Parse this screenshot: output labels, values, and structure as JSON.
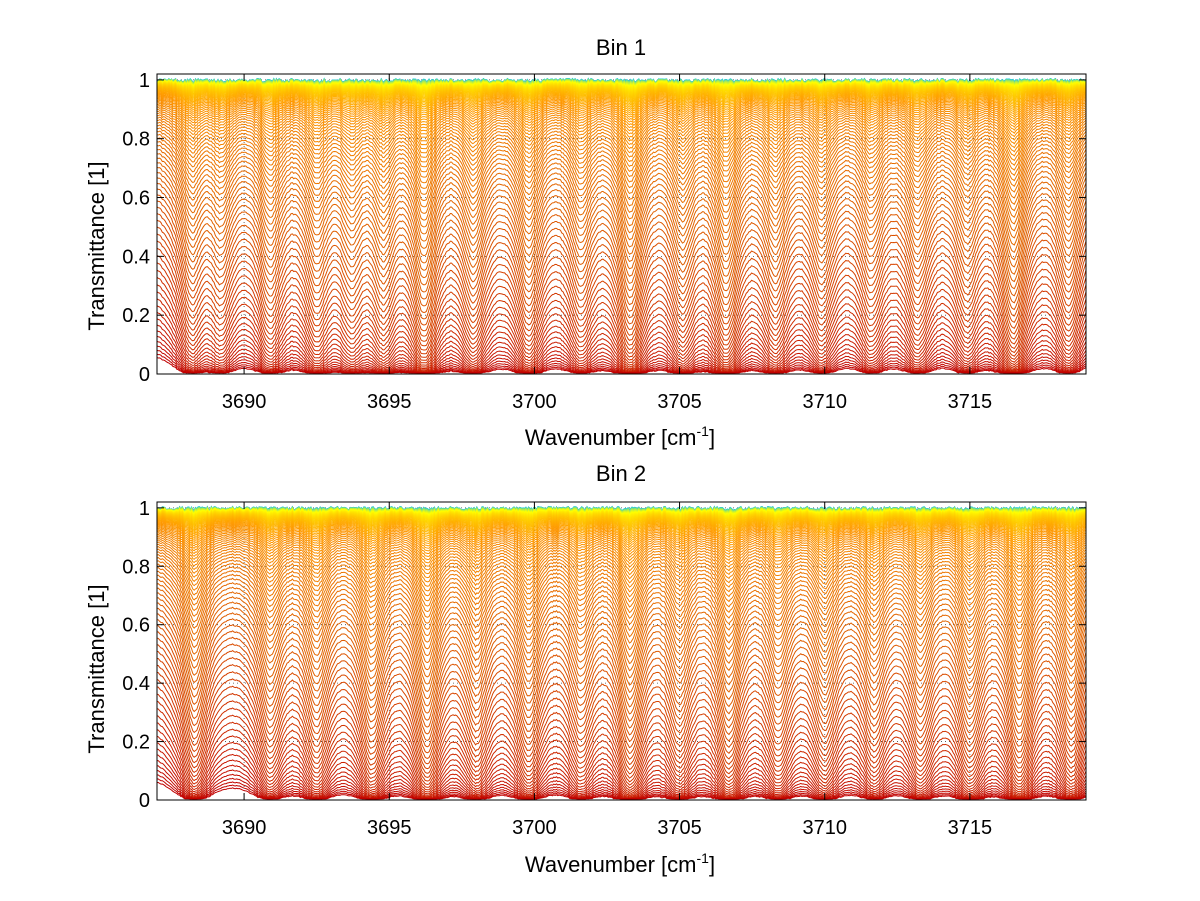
{
  "figure": {
    "background": "#ffffff"
  },
  "chart_data": [
    {
      "type": "line",
      "title": "Bin 1",
      "xlabel_main": "Wavenumber [cm",
      "xlabel_sup": "-1",
      "xlabel_end": "]",
      "ylabel": "Transmittance [1]",
      "xlim": [
        3687,
        3719
      ],
      "ylim": [
        0,
        1.02
      ],
      "xticks": [
        3690,
        3695,
        3700,
        3705,
        3710,
        3715
      ],
      "yticks": [
        0,
        0.2,
        0.4,
        0.6,
        0.8,
        1
      ],
      "ytick_labels": [
        "0",
        "0.2",
        "0.4",
        "0.6",
        "0.8",
        "1"
      ],
      "grid": true,
      "grid_style": "dotted",
      "series_count": 120,
      "colormap": [
        "#00bfff",
        "#ffff00",
        "#ff9900",
        "#e06000",
        "#c00000"
      ],
      "absorption_lines": [
        {
          "x": 3688.2,
          "depth": 0.55
        },
        {
          "x": 3689.2,
          "depth": 0.45
        },
        {
          "x": 3690.9,
          "depth": 0.6
        },
        {
          "x": 3692.5,
          "depth": 0.6
        },
        {
          "x": 3693.7,
          "depth": 0.5
        },
        {
          "x": 3694.8,
          "depth": 0.6
        },
        {
          "x": 3696.2,
          "depth": 0.95
        },
        {
          "x": 3697.9,
          "depth": 0.65
        },
        {
          "x": 3699.8,
          "depth": 0.7
        },
        {
          "x": 3701.6,
          "depth": 0.55
        },
        {
          "x": 3703.3,
          "depth": 0.95
        },
        {
          "x": 3705.1,
          "depth": 0.6
        },
        {
          "x": 3706.6,
          "depth": 0.85
        },
        {
          "x": 3708.3,
          "depth": 0.6
        },
        {
          "x": 3709.9,
          "depth": 0.55
        },
        {
          "x": 3711.6,
          "depth": 0.5
        },
        {
          "x": 3713.2,
          "depth": 0.55
        },
        {
          "x": 3714.9,
          "depth": 0.5
        },
        {
          "x": 3716.5,
          "depth": 0.95
        },
        {
          "x": 3718.4,
          "depth": 0.6
        }
      ]
    },
    {
      "type": "line",
      "title": "Bin 2",
      "xlabel_main": "Wavenumber [cm",
      "xlabel_sup": "-1",
      "xlabel_end": "]",
      "ylabel": "Transmittance [1]",
      "xlim": [
        3687,
        3719
      ],
      "ylim": [
        0,
        1.02
      ],
      "xticks": [
        3690,
        3695,
        3700,
        3705,
        3710,
        3715
      ],
      "yticks": [
        0,
        0.2,
        0.4,
        0.6,
        0.8,
        1
      ],
      "ytick_labels": [
        "0",
        "0.2",
        "0.4",
        "0.6",
        "0.8",
        "1"
      ],
      "grid": true,
      "grid_style": "dotted",
      "series_count": 120,
      "colormap": [
        "#00bfff",
        "#ffff00",
        "#ff9900",
        "#e06000",
        "#c00000"
      ],
      "absorption_lines": [
        {
          "x": 3688.3,
          "depth": 0.7
        },
        {
          "x": 3690.9,
          "depth": 0.6
        },
        {
          "x": 3692.5,
          "depth": 0.65
        },
        {
          "x": 3694.4,
          "depth": 0.75
        },
        {
          "x": 3696.3,
          "depth": 0.9
        },
        {
          "x": 3698.0,
          "depth": 0.6
        },
        {
          "x": 3699.8,
          "depth": 0.7
        },
        {
          "x": 3701.6,
          "depth": 0.55
        },
        {
          "x": 3703.3,
          "depth": 0.9
        },
        {
          "x": 3705.0,
          "depth": 0.6
        },
        {
          "x": 3706.7,
          "depth": 0.8
        },
        {
          "x": 3708.4,
          "depth": 0.6
        },
        {
          "x": 3710.0,
          "depth": 0.6
        },
        {
          "x": 3711.7,
          "depth": 0.55
        },
        {
          "x": 3713.3,
          "depth": 0.6
        },
        {
          "x": 3715.0,
          "depth": 0.7
        },
        {
          "x": 3716.7,
          "depth": 0.9
        },
        {
          "x": 3718.5,
          "depth": 0.75
        }
      ]
    }
  ]
}
